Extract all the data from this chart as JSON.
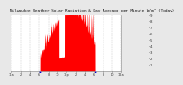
{
  "title": "Milwaukee Weather Solar Radiation & Day Average per Minute W/m² (Today)",
  "title_fontsize": 3.2,
  "background_color": "#e8e8e8",
  "plot_bg_color": "#ffffff",
  "bar_color": "#ff0000",
  "grid_color": "#bbbbbb",
  "ylim": [
    0,
    900
  ],
  "yticks": [
    100,
    200,
    300,
    400,
    500,
    600,
    700,
    800,
    900
  ],
  "ytick_labels": [
    "1",
    "2",
    "3",
    "4",
    "5",
    "6",
    "7",
    "8",
    "9"
  ],
  "ylabel_fontsize": 2.8,
  "xlabel_fontsize": 2.5,
  "n_points": 1440,
  "blue_marker_color": "#0000cc",
  "sunrise_idx": 370,
  "sunset_idx": 1100,
  "xtick_positions": [
    0,
    120,
    240,
    360,
    480,
    600,
    720,
    840,
    960,
    1080,
    1200,
    1320,
    1440
  ],
  "xtick_labels": [
    "12a",
    "2",
    "4",
    "6",
    "8",
    "10",
    "12p",
    "2",
    "4",
    "6",
    "8",
    "10",
    "12a"
  ]
}
